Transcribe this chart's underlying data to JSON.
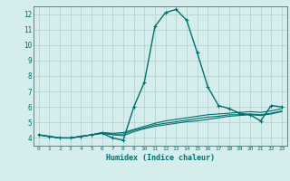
{
  "xlabel": "Humidex (Indice chaleur)",
  "x": [
    0,
    1,
    2,
    3,
    4,
    5,
    6,
    7,
    8,
    9,
    10,
    11,
    12,
    13,
    14,
    15,
    16,
    17,
    18,
    19,
    20,
    21,
    22,
    23
  ],
  "series": [
    [
      4.2,
      4.1,
      4.0,
      4.0,
      4.1,
      4.2,
      4.3,
      4.0,
      3.85,
      6.0,
      7.6,
      11.2,
      12.1,
      12.3,
      11.6,
      9.5,
      7.3,
      6.1,
      5.9,
      5.6,
      5.5,
      5.1,
      6.1,
      6.0
    ],
    [
      4.2,
      4.1,
      4.0,
      4.0,
      4.1,
      4.2,
      4.35,
      4.3,
      4.35,
      4.55,
      4.75,
      4.95,
      5.1,
      5.2,
      5.3,
      5.4,
      5.5,
      5.55,
      5.6,
      5.65,
      5.7,
      5.65,
      5.75,
      5.9
    ],
    [
      4.2,
      4.1,
      4.0,
      4.0,
      4.1,
      4.2,
      4.35,
      4.25,
      4.25,
      4.5,
      4.65,
      4.85,
      4.95,
      5.05,
      5.15,
      5.25,
      5.35,
      5.4,
      5.5,
      5.5,
      5.55,
      5.5,
      5.6,
      5.75
    ],
    [
      4.2,
      4.1,
      4.0,
      4.0,
      4.1,
      4.2,
      4.3,
      4.2,
      4.15,
      4.4,
      4.6,
      4.75,
      4.85,
      4.95,
      5.05,
      5.1,
      5.2,
      5.3,
      5.4,
      5.45,
      5.5,
      5.45,
      5.55,
      5.7
    ]
  ],
  "line_color": "#007070",
  "bg_color": "#d5eeed",
  "grid_color": "#b8d4d0",
  "ylim": [
    3.5,
    12.5
  ],
  "xlim": [
    -0.5,
    23.5
  ],
  "yticks": [
    4,
    5,
    6,
    7,
    8,
    9,
    10,
    11,
    12
  ],
  "xticks": [
    0,
    1,
    2,
    3,
    4,
    5,
    6,
    7,
    8,
    9,
    10,
    11,
    12,
    13,
    14,
    15,
    16,
    17,
    18,
    19,
    20,
    21,
    22,
    23
  ]
}
